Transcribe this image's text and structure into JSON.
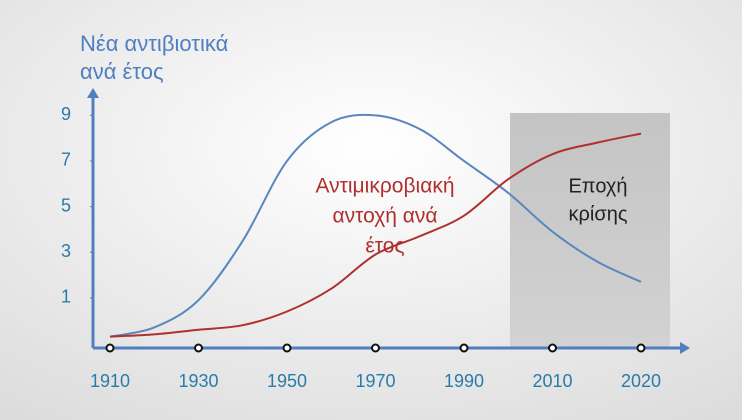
{
  "chart_data": {
    "type": "line",
    "y_label": [
      "Νέα αντιβιοτικά",
      "ανά έτος"
    ],
    "categories": [
      "1910",
      null,
      "1930",
      null,
      "1950",
      null,
      "1970",
      null,
      "1990",
      null,
      "2010",
      null,
      "2020"
    ],
    "series": [
      {
        "color": "#5b87bf",
        "values": [
          -0.7,
          -0.3,
          0.9,
          3.5,
          7.0,
          8.7,
          9.0,
          8.4,
          7.0,
          5.6,
          3.9,
          2.6,
          1.7
        ]
      },
      {
        "color": "#b03030",
        "values": [
          -0.7,
          -0.6,
          -0.4,
          -0.2,
          0.4,
          1.4,
          2.9,
          3.7,
          4.6,
          6.2,
          7.3,
          7.8,
          8.2
        ]
      }
    ],
    "ylim": [
      -1.2,
      10.2
    ],
    "yticks": [
      1,
      3,
      5,
      7,
      9
    ],
    "annotations": [
      {
        "lines": [
          "Αντιμικροβιακή",
          "αντοχή ανά",
          "έτος"
        ],
        "color": "#b03030"
      },
      {
        "lines": [
          "Εποχή",
          "κρίσης"
        ],
        "color": "#222222"
      }
    ]
  }
}
